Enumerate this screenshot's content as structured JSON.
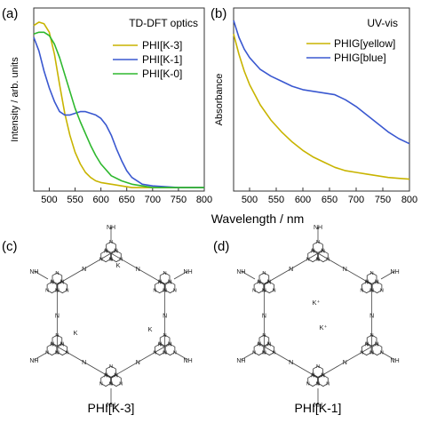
{
  "figure": {
    "xlabel": "Wavelength / nm",
    "panels": [
      {
        "letter": "(a)",
        "title": "TD-DFT optics",
        "ylabel": "Intensity / arb. units"
      },
      {
        "letter": "(b)",
        "title": "UV-vis",
        "ylabel": "Absorbance"
      },
      {
        "letter": "(c)",
        "caption": "PHI[K-3]"
      },
      {
        "letter": "(d)",
        "caption": "PHI[K-1]"
      }
    ],
    "colors": {
      "yellow": "#c8b400",
      "blue": "#3a58d0",
      "green": "#2eb82e",
      "frame": "#333333"
    },
    "structure_labels": {
      "ion": "K",
      "ion_plus": "K⁺",
      "amine": "NH",
      "ring_atom": "N"
    }
  },
  "chart_data": [
    {
      "type": "line",
      "title": "TD-DFT optics",
      "xlabel": "",
      "ylabel": "Intensity / arb. units",
      "xlim": [
        470,
        800
      ],
      "xticks": [
        500,
        550,
        600,
        650,
        700,
        750,
        800
      ],
      "y_ticks_shown": false,
      "legend": "top-right",
      "series": [
        {
          "name": "PHI[K-3]",
          "color": "#c8b400",
          "x": [
            470,
            480,
            490,
            500,
            510,
            520,
            530,
            540,
            550,
            560,
            570,
            580,
            590,
            600,
            620,
            640,
            660,
            700,
            800
          ],
          "y": [
            0.97,
            0.99,
            0.98,
            0.93,
            0.8,
            0.62,
            0.45,
            0.32,
            0.22,
            0.15,
            0.1,
            0.07,
            0.05,
            0.04,
            0.03,
            0.02,
            0.01,
            0.01,
            0.01
          ]
        },
        {
          "name": "PHI[K-1]",
          "color": "#3a58d0",
          "x": [
            470,
            480,
            490,
            500,
            510,
            520,
            530,
            540,
            550,
            560,
            570,
            580,
            590,
            600,
            610,
            620,
            630,
            640,
            650,
            660,
            680,
            700,
            750,
            800
          ],
          "y": [
            0.9,
            0.82,
            0.7,
            0.6,
            0.52,
            0.46,
            0.44,
            0.44,
            0.45,
            0.46,
            0.46,
            0.45,
            0.44,
            0.42,
            0.38,
            0.32,
            0.24,
            0.17,
            0.11,
            0.07,
            0.03,
            0.02,
            0.01,
            0.01
          ]
        },
        {
          "name": "PHI[K-0]",
          "color": "#2eb82e",
          "x": [
            470,
            480,
            490,
            500,
            510,
            520,
            530,
            540,
            550,
            560,
            570,
            580,
            590,
            600,
            620,
            640,
            660,
            680,
            700,
            800
          ],
          "y": [
            0.92,
            0.93,
            0.93,
            0.91,
            0.86,
            0.78,
            0.68,
            0.58,
            0.48,
            0.4,
            0.33,
            0.26,
            0.2,
            0.15,
            0.08,
            0.05,
            0.03,
            0.02,
            0.01,
            0.01
          ]
        }
      ]
    },
    {
      "type": "line",
      "title": "UV-vis",
      "xlabel": "",
      "ylabel": "Absorbance",
      "xlim": [
        470,
        800
      ],
      "xticks": [
        500,
        550,
        600,
        650,
        700,
        750,
        800
      ],
      "y_ticks_shown": false,
      "legend": "top-right",
      "series": [
        {
          "name": "PHIG[yellow]",
          "color": "#c8b400",
          "x": [
            470,
            480,
            490,
            500,
            520,
            540,
            560,
            580,
            600,
            620,
            640,
            660,
            680,
            700,
            720,
            740,
            760,
            780,
            800
          ],
          "y": [
            0.92,
            0.8,
            0.7,
            0.62,
            0.5,
            0.41,
            0.34,
            0.28,
            0.23,
            0.19,
            0.16,
            0.13,
            0.11,
            0.1,
            0.09,
            0.08,
            0.07,
            0.065,
            0.06
          ]
        },
        {
          "name": "PHIG[blue]",
          "color": "#3a58d0",
          "x": [
            470,
            480,
            490,
            500,
            520,
            540,
            560,
            580,
            600,
            620,
            640,
            660,
            680,
            700,
            720,
            740,
            760,
            780,
            800
          ],
          "y": [
            1.0,
            0.9,
            0.83,
            0.78,
            0.71,
            0.67,
            0.64,
            0.61,
            0.59,
            0.58,
            0.57,
            0.56,
            0.53,
            0.49,
            0.44,
            0.39,
            0.34,
            0.3,
            0.27
          ]
        }
      ]
    }
  ]
}
